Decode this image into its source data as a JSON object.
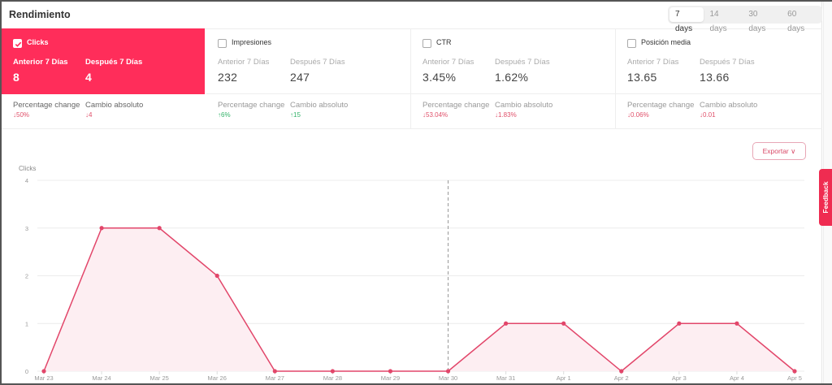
{
  "header": {
    "title": "Rendimiento",
    "ranges": [
      {
        "label": "7 days",
        "active": true
      },
      {
        "label": "14 days",
        "active": false
      },
      {
        "label": "30 days",
        "active": false
      },
      {
        "label": "60 days",
        "active": false
      }
    ]
  },
  "metrics": [
    {
      "name": "Clicks",
      "checked": true,
      "prev_label": "Anterior 7 Días",
      "prev_value": "8",
      "next_label": "Después 7 Días",
      "next_value": "4",
      "pct_label": "Percentage change",
      "pct_value": "↓50%",
      "pct_dir": "down",
      "abs_label": "Cambio absoluto",
      "abs_value": "↓4",
      "abs_dir": "down"
    },
    {
      "name": "Impresiones",
      "checked": false,
      "prev_label": "Anterior 7 Días",
      "prev_value": "232",
      "next_label": "Después 7 Días",
      "next_value": "247",
      "pct_label": "Percentage change",
      "pct_value": "↑6%",
      "pct_dir": "up",
      "abs_label": "Cambio absoluto",
      "abs_value": "↑15",
      "abs_dir": "up"
    },
    {
      "name": "CTR",
      "checked": false,
      "prev_label": "Anterior 7 Días",
      "prev_value": "3.45%",
      "next_label": "Después 7 Días",
      "next_value": "1.62%",
      "pct_label": "Percentage change",
      "pct_value": "↓53.04%",
      "pct_dir": "down",
      "abs_label": "Cambio absoluto",
      "abs_value": "↓1.83%",
      "abs_dir": "down"
    },
    {
      "name": "Posición media",
      "checked": false,
      "prev_label": "Anterior 7 Días",
      "prev_value": "13.65",
      "next_label": "Después 7 Días",
      "next_value": "13.66",
      "pct_label": "Percentage change",
      "pct_value": "↓0.06%",
      "pct_dir": "down",
      "abs_label": "Cambio absoluto",
      "abs_value": "↓0.01",
      "abs_dir": "down"
    }
  ],
  "export_label": "Exportar ∨",
  "feedback_label": "Feedback",
  "colors": {
    "accent": "#ff2d5a",
    "line": "#e2466a",
    "fill": "#fdeef2",
    "up": "#34b36a",
    "down": "#e0506a"
  },
  "chart_data": {
    "type": "area",
    "title": "",
    "ylabel": "Clicks",
    "xlabel": "",
    "categories": [
      "Mar 23",
      "Mar 24",
      "Mar 25",
      "Mar 26",
      "Mar 27",
      "Mar 28",
      "Mar 29",
      "Mar 30",
      "Mar 31",
      "Apr 1",
      "Apr 2",
      "Apr 3",
      "Apr 4",
      "Apr 5"
    ],
    "series": [
      {
        "name": "Clicks",
        "values": [
          0,
          3,
          3,
          2,
          0,
          0,
          0,
          0,
          1,
          1,
          0,
          1,
          1,
          0
        ]
      }
    ],
    "yticks": [
      0,
      1,
      2,
      3,
      4
    ],
    "ylim": [
      0,
      4
    ],
    "grid": true,
    "divider_at": "Mar 30",
    "legend": "none"
  }
}
